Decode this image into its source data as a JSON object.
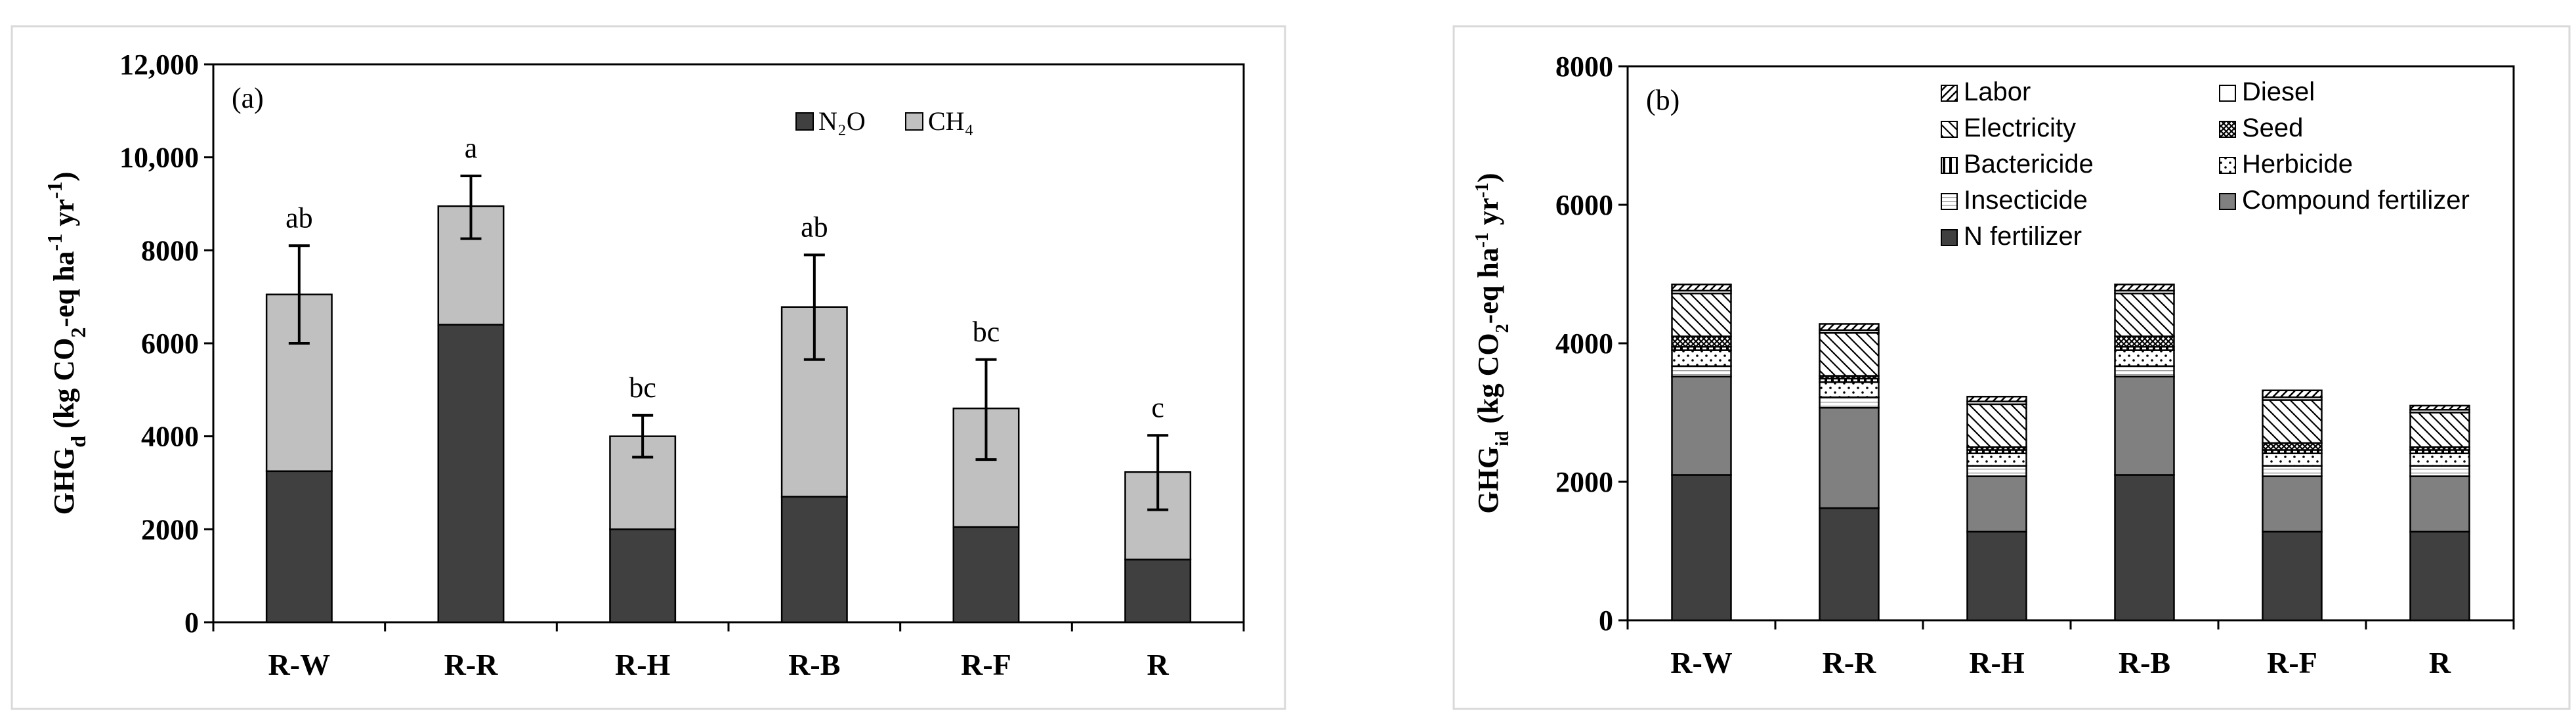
{
  "colors": {
    "n2o": "#404040",
    "ch4": "#c0c0c0",
    "n_fertilizer": "#404040",
    "compound_fertilizer": "#808080",
    "frame": "#d9d9d9",
    "axis": "#000000"
  },
  "chart_data": [
    {
      "type": "bar",
      "stacked": true,
      "panel_label": "(a)",
      "ylabel": {
        "main": "GHG",
        "sub": "d",
        "rest": " (kg CO",
        "sub2": "2",
        "rest2": "-eq ha",
        "sup1": "-1",
        "rest3": " yr",
        "sup2": "-1",
        "close": ")"
      },
      "ylim": [
        0,
        12000
      ],
      "yticks": [
        "0",
        "2000",
        "4000",
        "6000",
        "8000",
        "10,000",
        "12,000"
      ],
      "ytick_values": [
        0,
        2000,
        4000,
        6000,
        8000,
        10000,
        12000
      ],
      "categories": [
        "R-W",
        "R-R",
        "R-H",
        "R-B",
        "R-F",
        "R"
      ],
      "legend": {
        "position": "top-right",
        "entries": [
          {
            "label": "N₂O",
            "key": "n2o"
          },
          {
            "label": "CH₄",
            "key": "ch4"
          }
        ]
      },
      "series": [
        {
          "name": "N₂O",
          "key": "n2o",
          "values": [
            3250,
            6400,
            2000,
            2700,
            2050,
            1350
          ]
        },
        {
          "name": "CH₄",
          "key": "ch4",
          "values": [
            3800,
            2550,
            2000,
            4080,
            2550,
            1880
          ]
        }
      ],
      "error_bars": [
        [
          6000,
          8100
        ],
        [
          8250,
          9600
        ],
        [
          3550,
          4450
        ],
        [
          5650,
          7900
        ],
        [
          3500,
          5650
        ],
        [
          2420,
          4020
        ]
      ],
      "significance": [
        "ab",
        "a",
        "bc",
        "ab",
        "bc",
        "c"
      ],
      "grid": false
    },
    {
      "type": "bar",
      "stacked": true,
      "panel_label": "(b)",
      "ylabel": {
        "main": "GHG",
        "sub": "id",
        "rest": " (kg CO",
        "sub2": "2",
        "rest2": "-eq ha",
        "sup1": "-1",
        "rest3": " yr",
        "sup2": "-1",
        "close": ")"
      },
      "ylim": [
        0,
        8000
      ],
      "yticks": [
        "0",
        "2000",
        "4000",
        "6000",
        "8000"
      ],
      "ytick_values": [
        0,
        2000,
        4000,
        6000,
        8000
      ],
      "categories": [
        "R-W",
        "R-R",
        "R-H",
        "R-B",
        "R-F",
        "R"
      ],
      "legend": {
        "position": "top",
        "entries": [
          {
            "label": "Labor",
            "key": "labor"
          },
          {
            "label": "Diesel",
            "key": "diesel"
          },
          {
            "label": "Electricity",
            "key": "electricity"
          },
          {
            "label": "Seed",
            "key": "seed"
          },
          {
            "label": "Bactericide",
            "key": "bactericide"
          },
          {
            "label": "Herbicide",
            "key": "herbicide"
          },
          {
            "label": "Insecticide",
            "key": "insecticide"
          },
          {
            "label": "Compound fertilizer",
            "key": "compound_fertilizer"
          },
          {
            "label": "N fertilizer",
            "key": "n_fertilizer"
          }
        ]
      },
      "series": [
        {
          "name": "N fertilizer",
          "key": "n_fertilizer",
          "values": [
            2100,
            1620,
            1280,
            2100,
            1280,
            1280
          ]
        },
        {
          "name": "Compound fertilizer",
          "key": "compound_fertilizer",
          "values": [
            1420,
            1450,
            800,
            1420,
            800,
            800
          ]
        },
        {
          "name": "Insecticide",
          "key": "insecticide",
          "values": [
            150,
            150,
            150,
            150,
            150,
            150
          ]
        },
        {
          "name": "Herbicide",
          "key": "herbicide",
          "values": [
            230,
            220,
            180,
            230,
            180,
            180
          ]
        },
        {
          "name": "Bactericide",
          "key": "bactericide",
          "values": [
            50,
            50,
            50,
            50,
            50,
            50
          ]
        },
        {
          "name": "Seed",
          "key": "seed",
          "values": [
            150,
            40,
            40,
            150,
            100,
            40
          ]
        },
        {
          "name": "Electricity",
          "key": "electricity",
          "values": [
            620,
            620,
            620,
            620,
            620,
            500
          ]
        },
        {
          "name": "Diesel",
          "key": "diesel",
          "values": [
            40,
            40,
            40,
            40,
            40,
            40
          ]
        },
        {
          "name": "Labor",
          "key": "labor",
          "values": [
            90,
            90,
            70,
            90,
            100,
            60
          ]
        }
      ],
      "grid": false
    }
  ]
}
